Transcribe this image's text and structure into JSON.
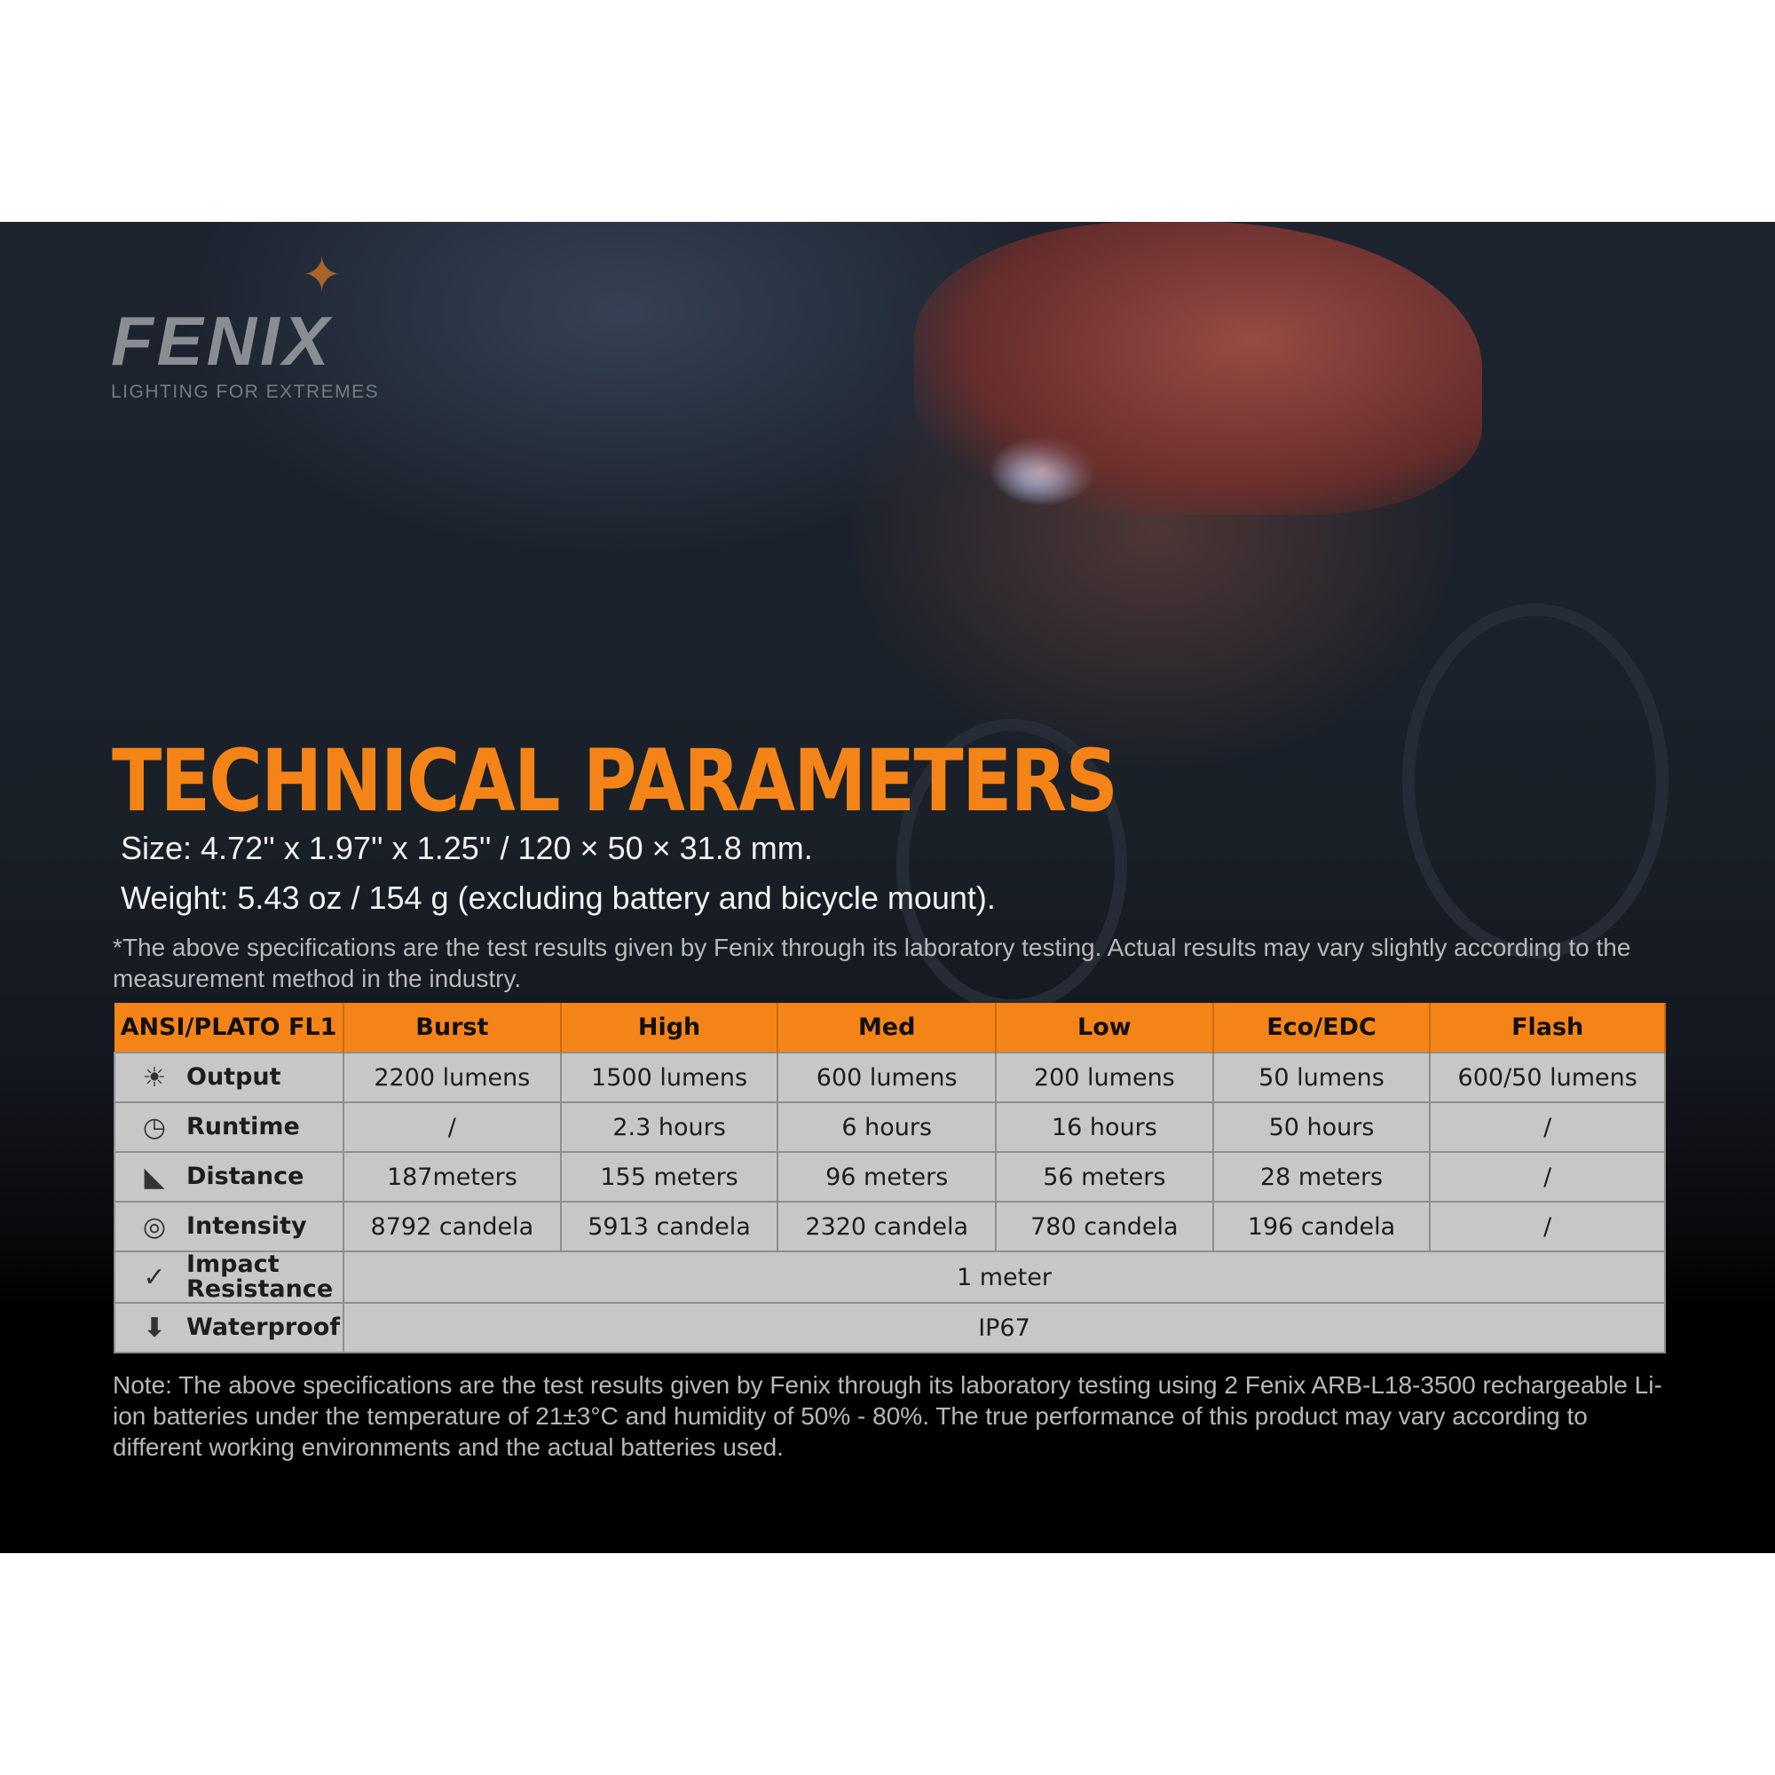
{
  "brand": {
    "name": "FENIX",
    "tagline": "LIGHTING FOR EXTREMES"
  },
  "title": "TECHNICAL PARAMETERS",
  "size": "Size: 4.72'' x 1.97'' x 1.25'' / 120 × 50 × 31.8 mm.",
  "weight": "Weight: 5.43 oz / 154 g (excluding battery and bicycle mount).",
  "disclaimer": "*The above specifications are the test results given by Fenix through its laboratory testing. Actual results may vary slightly according to the measurement method in the industry.",
  "table": {
    "headers": [
      "ANSI/PLATO  FL1",
      "Burst",
      "High",
      "Med",
      "Low",
      "Eco/EDC",
      "Flash"
    ],
    "rows": [
      {
        "label": "Output",
        "icon": "burst-icon",
        "values": [
          "2200 lumens",
          "1500 lumens",
          "600 lumens",
          "200 lumens",
          "50 lumens",
          "600/50 lumens"
        ]
      },
      {
        "label": "Runtime",
        "icon": "clock-icon",
        "values": [
          "/",
          "2.3 hours",
          "6 hours",
          "16 hours",
          "50 hours",
          "/"
        ]
      },
      {
        "label": "Distance",
        "icon": "distance-icon",
        "values": [
          "187meters",
          "155 meters",
          "96 meters",
          "56 meters",
          "28 meters",
          "/"
        ]
      },
      {
        "label": "Intensity",
        "icon": "target-icon",
        "values": [
          "8792 candela",
          "5913 candela",
          "2320 candela",
          "780 candela",
          "196 candela",
          "/"
        ]
      }
    ],
    "impact": {
      "label1": "Impact",
      "label2": "Resistance",
      "icon": "impact-icon",
      "value": "1 meter"
    },
    "waterproof": {
      "label": "Waterproof",
      "icon": "waterproof-icon",
      "value": "IP67"
    }
  },
  "note": "Note: The above specifications are the test results given by Fenix through its laboratory testing using 2 Fenix ARB-L18-3500 rechargeable Li-ion batteries under the temperature of 21±3°C and humidity of 50% - 80%. The true performance of this product may vary according to different working environments and the actual batteries used.",
  "colors": {
    "accent": "#f58418",
    "cell": "#c7c7c7"
  }
}
